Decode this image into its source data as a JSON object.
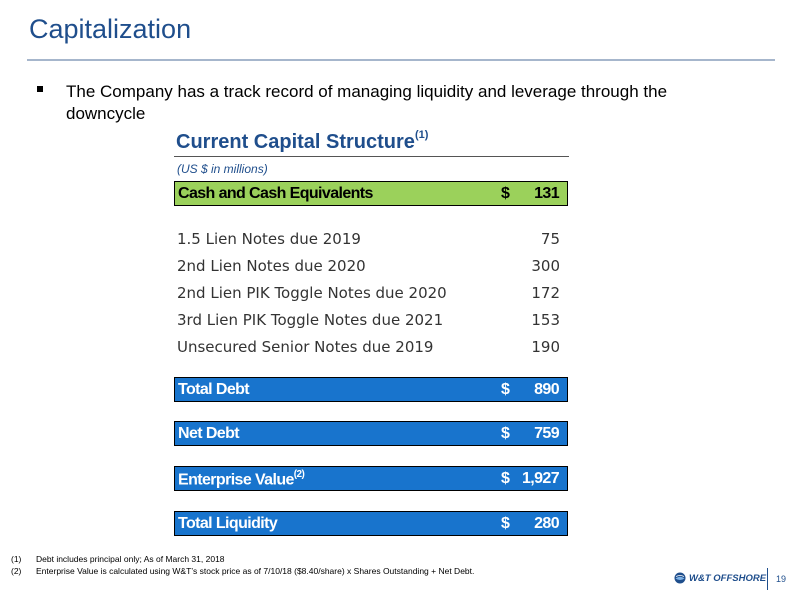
{
  "header": {
    "title": "Capitalization"
  },
  "bullet": {
    "text": "The Company has a track record of managing liquidity and leverage through the downcycle"
  },
  "section": {
    "title": "Current Capital Structure",
    "title_sup": "(1)",
    "units": "(US $ in millions)"
  },
  "cash": {
    "label": "Cash and Cash Equivalents",
    "currency": "$",
    "value": "131"
  },
  "debt_items": [
    {
      "label": "1.5 Lien Notes due 2019",
      "value": "75"
    },
    {
      "label": "2nd Lien Notes due 2020",
      "value": "300"
    },
    {
      "label": "2nd Lien PIK Toggle Notes due 2020",
      "value": "172"
    },
    {
      "label": "3rd Lien PIK Toggle Notes due 2021",
      "value": "153"
    },
    {
      "label": "Unsecured Senior Notes due 2019",
      "value": "190"
    }
  ],
  "total_debt": {
    "label": "Total Debt",
    "currency": "$",
    "value": "890"
  },
  "net_debt": {
    "label": "Net Debt",
    "currency": "$",
    "value": "759"
  },
  "enterprise_value": {
    "label": "Enterprise Value",
    "sup": "(2)",
    "currency": "$",
    "value": "1,927"
  },
  "total_liquidity": {
    "label": "Total Liquidity",
    "currency": "$",
    "value": "280"
  },
  "footnotes": [
    {
      "num": "(1)",
      "text": "Debt includes principal only; As of March 31, 2018"
    },
    {
      "num": "(2)",
      "text": "Enterprise Value is calculated using W&T’s stock price as of 7/10/18 ($8.40/share) x Shares Outstanding + Net Debt."
    }
  ],
  "footer": {
    "logo_text": "W&T OFFSHORE",
    "logo_icon": "wt-globe-icon",
    "page_number": "19"
  },
  "colors": {
    "title_blue": "#1f4e8c",
    "bar_blue": "#1874cd",
    "bar_green": "#9bd15b"
  }
}
